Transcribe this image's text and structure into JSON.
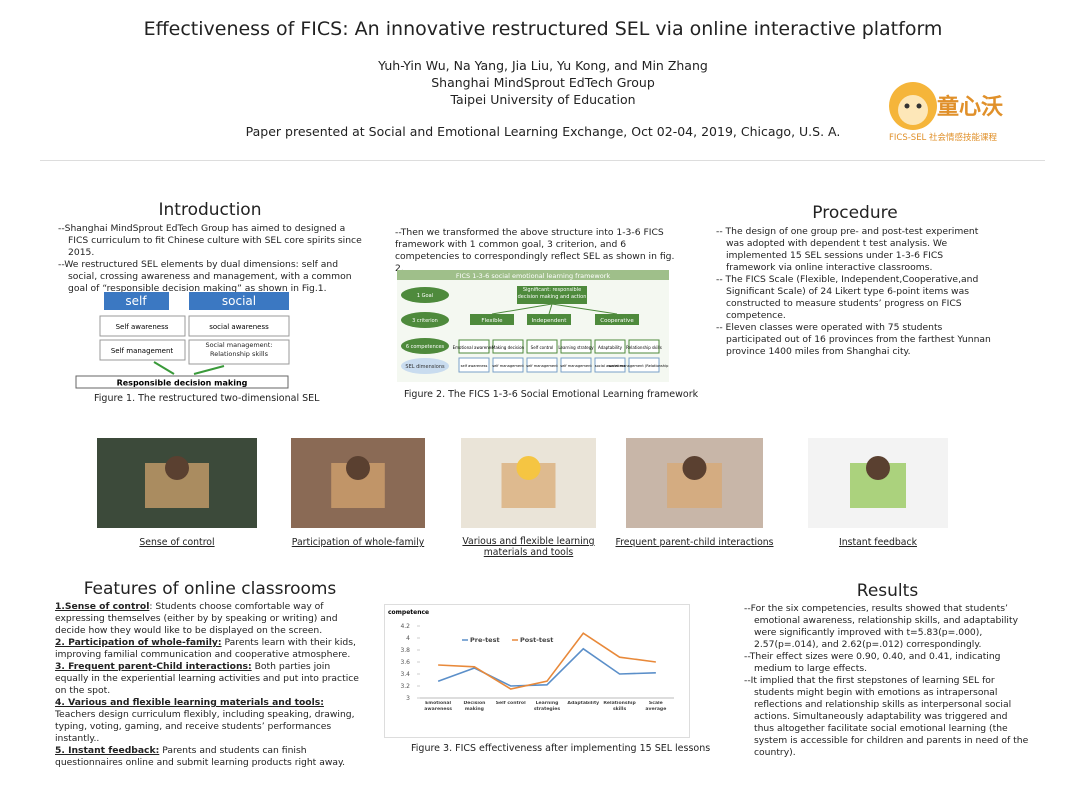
{
  "header": {
    "title": "Effectiveness of FICS: An innovative restructured SEL via online interactive platform",
    "authors": "Yuh-Yin Wu, Na Yang, Jia Liu, Yu Kong, and  Min Zhang",
    "affiliations": [
      "Shanghai MindSprout  EdTech Group",
      "Taipei University of Education"
    ],
    "presented": "Paper presented at Social and Emotional Learning Exchange, Oct 02-04, 2019, Chicago, U.S. A."
  },
  "logo": {
    "name": "童心沃",
    "tagline": "FICS-SEL 社会情感技能课程"
  },
  "introduction": {
    "heading": "Introduction",
    "paragraphs": [
      "--Shanghai MindSprout EdTech Group has aimed to designed a FICS curriculum to fit Chinese culture with SEL core spirits since 2015.",
      "--We restructured SEL elements by dual dimensions: self and social, crossing awareness and management,  with a common goal of “responsible decision making” as shown in Fig.1."
    ],
    "figure": {
      "self": "self",
      "social": "social",
      "boxes": [
        "Self awareness",
        "social awareness",
        "Self management",
        "Social management: Relationship skills"
      ],
      "goal": "Responsible decision making",
      "caption": "Figure 1. The restructured two-dimensional SEL"
    }
  },
  "framework": {
    "paragraph": "--Then we transformed the above structure into 1-3-6 FICS framework with 1 common goal, 3 criterion, and 6 competencies to correspondingly reflect SEL as shown in fig. 2.",
    "figure": {
      "title": "FICS 1-3-6 social emotional learning framework",
      "levels": [
        "1 Goal",
        "3 criterion",
        "6 competences",
        "SEL dimensions"
      ],
      "goal": "Significant: responsible decision making and action",
      "criteria": [
        "Flexible",
        "Independent",
        "Cooperative"
      ],
      "competences": [
        "Emotional awareness",
        "Making decision",
        "Self control",
        "Learning strategy",
        "Adaptability",
        "Relationship skills"
      ],
      "dimensions": [
        "self awareness",
        "self management",
        "self management",
        "self management",
        "social awareness",
        "social management (Relationship skills)"
      ],
      "caption": "Figure 2. The FICS 1-3-6 Social Emotional Learning framework"
    }
  },
  "procedure": {
    "heading": "Procedure",
    "items": [
      "-- The design of one group pre- and post-test experiment was adopted with dependent t test analysis. We implemented 15 SEL sessions under 1-3-6 FICS framework via online interactive classrooms.",
      "-- The FICS Scale (Flexible, Independent,Cooperative,and Significant Scale) of 24 Likert type 6-point items was constructed to measure students’ progress on FICS competence.",
      "-- Eleven classes were operated with 75 students participated out of 16 provinces from the farthest Yunnan province 1400 miles from Shanghai city."
    ]
  },
  "photos": [
    "Sense of control",
    "Participation of whole-family",
    "Various and flexible learning materials and tools",
    "Frequent parent-child interactions",
    "Instant feedback"
  ],
  "features": {
    "heading": "Features of online classrooms",
    "items": [
      {
        "lead": "1.Sense of control",
        "text": ": Students choose  comfortable way of expressing themselves (either by by speaking or writing) and  decide how they would like to be displayed on the screen."
      },
      {
        "lead": "2. Participation of whole-family:",
        "text": " Parents learn with their kids, improving familial communication and cooperative atmosphere."
      },
      {
        "lead": "3. Frequent parent-Child interactions:",
        "text": " Both parties join equally in the experiential learning activities and put into practice on the spot."
      },
      {
        "lead": "4. Various and flexible learning materials and tools:",
        "text": " Teachers design curriculum flexibly, including speaking, drawing, typing, voting, gaming,  and receive students’ performances instantly.."
      },
      {
        "lead": "5. Instant feedback:",
        "text": " Parents and students can finish questionnaires online and submit learning products right away."
      }
    ]
  },
  "chart_data": {
    "type": "line",
    "y_label": "competence",
    "categories": [
      "Emotional awareness",
      "Decision making",
      "Self control",
      "Learning strategies",
      "Adaptability",
      "Relationship skills",
      "Scale average"
    ],
    "series": [
      {
        "name": "Pre-test",
        "color": "#5b8fc9",
        "values": [
          3.28,
          3.5,
          3.2,
          3.22,
          3.82,
          3.4,
          3.42
        ]
      },
      {
        "name": "Post-test",
        "color": "#e8893a",
        "values": [
          3.55,
          3.52,
          3.15,
          3.28,
          4.08,
          3.68,
          3.6
        ]
      }
    ],
    "ylim": [
      3,
      4.3
    ],
    "yticks": [
      3,
      3.2,
      3.4,
      3.6,
      3.8,
      4,
      4.2
    ],
    "caption": "Figure 3. FICS effectiveness after implementing 15 SEL lessons"
  },
  "results": {
    "heading": "Results",
    "items": [
      "--For the six competencies, results showed that students’ emotional awareness, relationship skills, and adaptability were significantly improved with t=5.83(p=.000), 2.57(p=.014), and 2.62(p=.012) correspondingly.",
      "--Their effect sizes were 0.90, 0.40, and 0.41, indicating medium to large effects.",
      "--It implied that the first stepstones of learning SEL for students might begin with emotions as intrapersonal reflections and relationship skills as interpersonal social actions. Simultaneously adaptability was triggered and thus altogether facilitate social emotional learning (the system is accessible for children and parents in need of the country)."
    ]
  }
}
